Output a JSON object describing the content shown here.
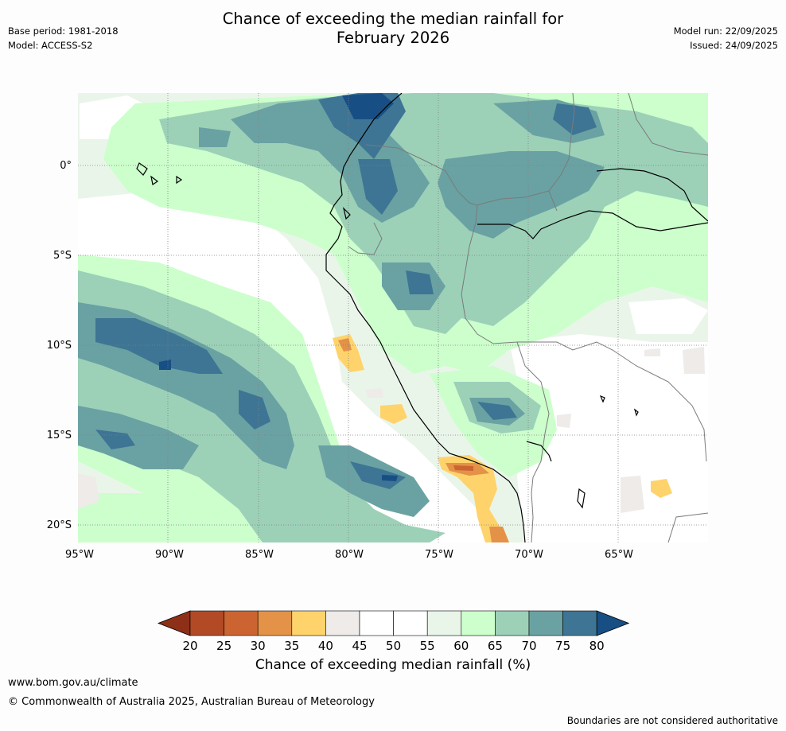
{
  "header": {
    "title_line1": "Chance of exceeding the median rainfall for",
    "title_line2": "February 2026",
    "base_period": "Base period: 1981-2018",
    "model": "Model: ACCESS-S2",
    "model_run": "Model run: 22/09/2025",
    "issued": "Issued: 24/09/2025"
  },
  "map": {
    "lat_labels": [
      "0°",
      "5°S",
      "10°S",
      "15°S",
      "20°S"
    ],
    "lon_labels": [
      "95°W",
      "90°W",
      "85°W",
      "80°W",
      "75°W",
      "70°W",
      "65°W"
    ],
    "ocean_color": "#ffffff",
    "coastline_color": "#000000",
    "border_color": "#7a7a7a"
  },
  "colorbar": {
    "title": "Chance of exceeding median rainfall (%)",
    "tick_labels": [
      "20",
      "25",
      "30",
      "35",
      "40",
      "45",
      "50",
      "55",
      "60",
      "65",
      "70",
      "75",
      "80"
    ],
    "colors": [
      "#8e2f18",
      "#b24a26",
      "#cc6431",
      "#e39248",
      "#ffd36b",
      "#eeebe8",
      "#ffffff",
      "#ffffff",
      "#eaf5ea",
      "#ccffcc",
      "#9cd1b8",
      "#6aa2a3",
      "#3e7594",
      "#174f85"
    ]
  },
  "footer": {
    "url": "www.bom.gov.au/climate",
    "copyright": "© Commonwealth of Australia 2025, Australian Bureau of Meteorology",
    "note": "Boundaries are not considered authoritative"
  }
}
